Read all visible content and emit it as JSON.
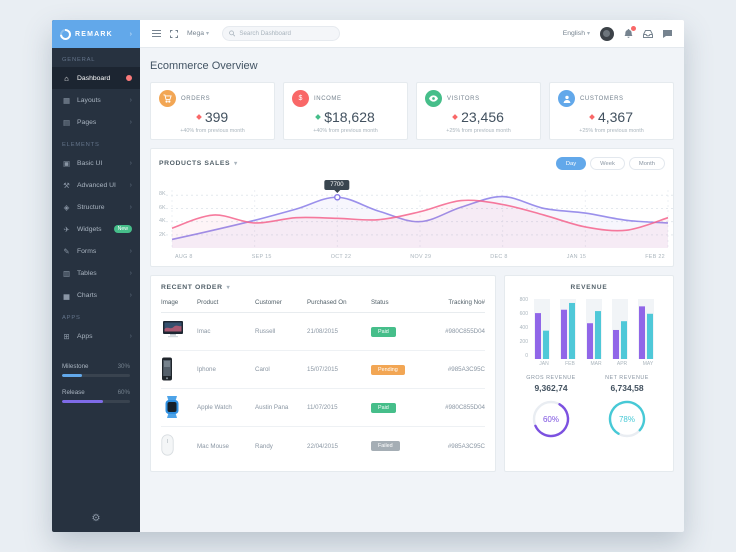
{
  "brand": "REMARK",
  "sidebar": {
    "sections": [
      {
        "label": "GENERAL",
        "items": [
          {
            "label": "Dashboard",
            "active": true,
            "badge": "dot"
          },
          {
            "label": "Layouts"
          },
          {
            "label": "Pages"
          }
        ]
      },
      {
        "label": "Elements",
        "items": [
          {
            "label": "Basic UI"
          },
          {
            "label": "Advanced UI"
          },
          {
            "label": "Structure"
          },
          {
            "label": "Widgets",
            "badge_text": "New"
          },
          {
            "label": "Forms"
          },
          {
            "label": "Tables"
          },
          {
            "label": "Charts"
          }
        ]
      },
      {
        "label": "APPS",
        "items": [
          {
            "label": "Apps"
          }
        ]
      }
    ],
    "progress": [
      {
        "label": "Milestone",
        "value": "30%",
        "pct": 30,
        "color": "#62a8ea"
      },
      {
        "label": "Release",
        "value": "60%",
        "pct": 60,
        "color": "#7e6be8"
      }
    ]
  },
  "topbar": {
    "mega_label": "Mega",
    "search_placeholder": "Search Dashboard",
    "language": "English"
  },
  "page": {
    "title": "Ecommerce Overview"
  },
  "stats": [
    {
      "label": "ORDERS",
      "value": "399",
      "delta": "+40% from previous month",
      "icon": "cart-icon",
      "color": "#f2a654",
      "marker": "#f96868"
    },
    {
      "label": "INCOME",
      "value": "$18,628",
      "delta": "+40% from previous month",
      "icon": "dollar-icon",
      "color": "#f96868",
      "marker": "#46be8a"
    },
    {
      "label": "VISITORS",
      "value": "23,456",
      "delta": "+25% from previous month",
      "icon": "eye-icon",
      "color": "#46be8a",
      "marker": "#f96868"
    },
    {
      "label": "CUSTOMERS",
      "value": "4,367",
      "delta": "+25% from previous month",
      "icon": "user-icon",
      "color": "#62a8ea",
      "marker": "#f96868"
    }
  ],
  "products_sales": {
    "title": "PRODUCTS SALES",
    "range_buttons": [
      "Day",
      "Week",
      "Month"
    ],
    "active_range": "Day"
  },
  "chart_data": [
    {
      "type": "line",
      "title": "Products Sales",
      "x_labels": [
        "AUG 8",
        "SEP 15",
        "OCT 22",
        "NOV 29",
        "DEC 8",
        "JAN 15",
        "FEB 22"
      ],
      "ylim": [
        0,
        8800
      ],
      "yticks": [
        {
          "label": "8K",
          "value": 8000
        },
        {
          "label": "6K",
          "value": 6000
        },
        {
          "label": "4K",
          "value": 4000
        },
        {
          "label": "2K",
          "value": 2000
        }
      ],
      "grid": true,
      "series": [
        {
          "name": "purple",
          "color": "#8a7ce8",
          "values": [
            1300,
            2700,
            4200,
            5900,
            7700,
            5600,
            4000,
            6200,
            7800,
            6000,
            5300,
            4200,
            3800
          ]
        },
        {
          "name": "pink",
          "color": "#f4638c",
          "values": [
            3000,
            5000,
            3800,
            4600,
            4500,
            4300,
            5500,
            7200,
            6600,
            5000,
            3200,
            2700,
            4600
          ]
        }
      ],
      "tooltip": {
        "value": "7700",
        "series": "purple",
        "index": 4
      }
    },
    {
      "type": "bar",
      "title": "REVENUE",
      "categories": [
        "JAN",
        "FEB",
        "MAR",
        "APR",
        "MAY"
      ],
      "ylim": [
        0,
        800
      ],
      "yticks": [
        800,
        600,
        400,
        200,
        0
      ],
      "series": [
        {
          "name": "series-a",
          "color": "#9066e8",
          "values": [
            680,
            730,
            530,
            430,
            780
          ]
        },
        {
          "name": "series-b",
          "color": "#4fc8d8",
          "values": [
            420,
            830,
            710,
            560,
            670
          ]
        }
      ]
    },
    {
      "type": "donut",
      "label": "GROS REVENUE",
      "amount": "9,362,74",
      "percent": 60,
      "color": "#7c51e0"
    },
    {
      "type": "donut",
      "label": "NET REVENUE",
      "amount": "6,734,58",
      "percent": 78,
      "color": "#47c9d6"
    }
  ],
  "recent_order": {
    "title": "RECENT ORDER",
    "columns": [
      "Image",
      "Product",
      "Customer",
      "Purchased On",
      "Status",
      "Tracking No#"
    ],
    "rows": [
      {
        "product": "Imac",
        "customer": "Russell",
        "purchased": "21/08/2015",
        "status": "Paid",
        "status_color": "green",
        "tracking": "#980C855D04"
      },
      {
        "product": "Iphone",
        "customer": "Carol",
        "purchased": "15/07/2015",
        "status": "Pending",
        "status_color": "orange",
        "tracking": "#985A3C95C"
      },
      {
        "product": "Apple Watch",
        "customer": "Austin Pana",
        "purchased": "11/07/2015",
        "status": "Paid",
        "status_color": "green",
        "tracking": "#980C855D04"
      },
      {
        "product": "Mac Mouse",
        "customer": "Randy",
        "purchased": "22/04/2015",
        "status": "Failed",
        "status_color": "gray",
        "tracking": "#985A3C95C"
      }
    ]
  },
  "revenue": {
    "title": "REVENUE",
    "gross_label": "GROS REVENUE",
    "gross_value": "9,362,74",
    "gross_percent": "60%",
    "net_label": "NET REVENUE",
    "net_value": "6,734,58",
    "net_percent": "78%"
  }
}
